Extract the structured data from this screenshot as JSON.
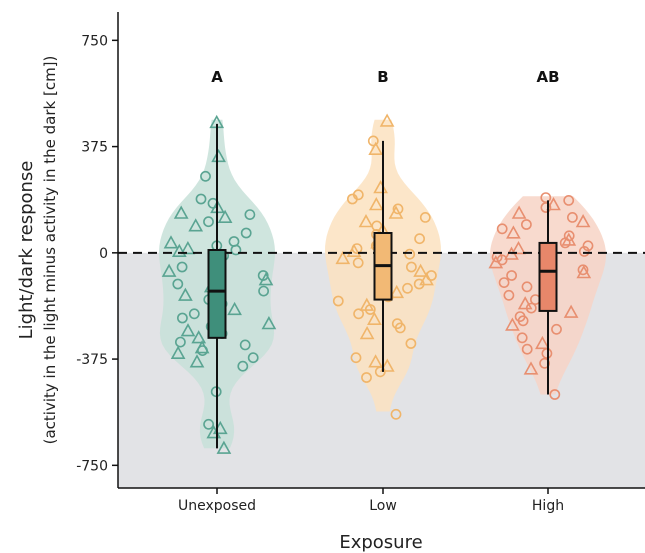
{
  "chart_data": {
    "type": "violin",
    "xlabel": "Exposure",
    "ylabel_line1": "Light/dark response",
    "ylabel_line2": "(activity in the light minus activity in the dark [cm])",
    "ylim": [
      -830,
      850
    ],
    "yticks": [
      750,
      375,
      0,
      -375,
      -750
    ],
    "ytick_labels": [
      "750",
      "375",
      "0",
      "-375",
      "-750"
    ],
    "reference_line": 0,
    "shaded_region": {
      "from": -830,
      "to": 0,
      "color": "#e2e3e6"
    },
    "groups": [
      {
        "name": "Unexposed",
        "sig_label": "A",
        "color": "#5aa492",
        "fill": "#c7e0d8",
        "box_fill": "#3f8f7b",
        "violin_range": [
          -690,
          470
        ],
        "box": {
          "whisker_low": -690,
          "q1": -300,
          "median": -135,
          "q3": 10,
          "whisker_high": 455
        },
        "points": [
          {
            "y": 460,
            "s": "triangle"
          },
          {
            "y": 340,
            "s": "triangle"
          },
          {
            "y": 270,
            "s": "circle"
          },
          {
            "y": 190,
            "s": "circle"
          },
          {
            "y": 175,
            "s": "circle"
          },
          {
            "y": 160,
            "s": "triangle"
          },
          {
            "y": 140,
            "s": "triangle"
          },
          {
            "y": 135,
            "s": "circle"
          },
          {
            "y": 125,
            "s": "triangle"
          },
          {
            "y": 110,
            "s": "circle"
          },
          {
            "y": 95,
            "s": "triangle"
          },
          {
            "y": 70,
            "s": "circle"
          },
          {
            "y": 40,
            "s": "circle"
          },
          {
            "y": 35,
            "s": "triangle"
          },
          {
            "y": 25,
            "s": "circle"
          },
          {
            "y": 15,
            "s": "triangle"
          },
          {
            "y": 10,
            "s": "circle"
          },
          {
            "y": 5,
            "s": "triangle"
          },
          {
            "y": -10,
            "s": "circle"
          },
          {
            "y": -30,
            "s": "triangle"
          },
          {
            "y": -50,
            "s": "circle"
          },
          {
            "y": -65,
            "s": "triangle"
          },
          {
            "y": -80,
            "s": "circle"
          },
          {
            "y": -95,
            "s": "triangle"
          },
          {
            "y": -110,
            "s": "circle"
          },
          {
            "y": -120,
            "s": "triangle"
          },
          {
            "y": -135,
            "s": "circle"
          },
          {
            "y": -150,
            "s": "triangle"
          },
          {
            "y": -165,
            "s": "circle"
          },
          {
            "y": -180,
            "s": "circle"
          },
          {
            "y": -200,
            "s": "triangle"
          },
          {
            "y": -215,
            "s": "circle"
          },
          {
            "y": -230,
            "s": "circle"
          },
          {
            "y": -250,
            "s": "triangle"
          },
          {
            "y": -260,
            "s": "circle"
          },
          {
            "y": -275,
            "s": "triangle"
          },
          {
            "y": -285,
            "s": "circle"
          },
          {
            "y": -300,
            "s": "triangle"
          },
          {
            "y": -315,
            "s": "circle"
          },
          {
            "y": -325,
            "s": "circle"
          },
          {
            "y": -335,
            "s": "triangle"
          },
          {
            "y": -345,
            "s": "circle"
          },
          {
            "y": -355,
            "s": "triangle"
          },
          {
            "y": -370,
            "s": "circle"
          },
          {
            "y": -385,
            "s": "triangle"
          },
          {
            "y": -400,
            "s": "circle"
          },
          {
            "y": -490,
            "s": "circle"
          },
          {
            "y": -605,
            "s": "circle"
          },
          {
            "y": -620,
            "s": "triangle"
          },
          {
            "y": -635,
            "s": "triangle"
          },
          {
            "y": -690,
            "s": "triangle"
          }
        ]
      },
      {
        "name": "Low",
        "sig_label": "B",
        "color": "#f0b56a",
        "fill": "#fbe2c0",
        "box_fill": "#f2b975",
        "violin_range": [
          -560,
          470
        ],
        "box": {
          "whisker_low": -420,
          "q1": -165,
          "median": -45,
          "q3": 70,
          "whisker_high": 395
        },
        "points": [
          {
            "y": 465,
            "s": "triangle"
          },
          {
            "y": 395,
            "s": "circle"
          },
          {
            "y": 365,
            "s": "triangle"
          },
          {
            "y": 230,
            "s": "triangle"
          },
          {
            "y": 205,
            "s": "circle"
          },
          {
            "y": 190,
            "s": "circle"
          },
          {
            "y": 170,
            "s": "triangle"
          },
          {
            "y": 155,
            "s": "circle"
          },
          {
            "y": 140,
            "s": "triangle"
          },
          {
            "y": 125,
            "s": "circle"
          },
          {
            "y": 110,
            "s": "triangle"
          },
          {
            "y": 95,
            "s": "circle"
          },
          {
            "y": 80,
            "s": "triangle"
          },
          {
            "y": 65,
            "s": "circle"
          },
          {
            "y": 50,
            "s": "circle"
          },
          {
            "y": 35,
            "s": "triangle"
          },
          {
            "y": 25,
            "s": "circle"
          },
          {
            "y": 15,
            "s": "circle"
          },
          {
            "y": 5,
            "s": "triangle"
          },
          {
            "y": -5,
            "s": "circle"
          },
          {
            "y": -20,
            "s": "triangle"
          },
          {
            "y": -35,
            "s": "circle"
          },
          {
            "y": -50,
            "s": "circle"
          },
          {
            "y": -65,
            "s": "triangle"
          },
          {
            "y": -80,
            "s": "circle"
          },
          {
            "y": -95,
            "s": "triangle"
          },
          {
            "y": -110,
            "s": "circle"
          },
          {
            "y": -125,
            "s": "circle"
          },
          {
            "y": -140,
            "s": "triangle"
          },
          {
            "y": -155,
            "s": "circle"
          },
          {
            "y": -170,
            "s": "circle"
          },
          {
            "y": -185,
            "s": "triangle"
          },
          {
            "y": -200,
            "s": "circle"
          },
          {
            "y": -215,
            "s": "circle"
          },
          {
            "y": -235,
            "s": "triangle"
          },
          {
            "y": -250,
            "s": "circle"
          },
          {
            "y": -265,
            "s": "circle"
          },
          {
            "y": -285,
            "s": "triangle"
          },
          {
            "y": -320,
            "s": "circle"
          },
          {
            "y": -370,
            "s": "circle"
          },
          {
            "y": -385,
            "s": "triangle"
          },
          {
            "y": -400,
            "s": "triangle"
          },
          {
            "y": -420,
            "s": "circle"
          },
          {
            "y": -440,
            "s": "circle"
          },
          {
            "y": -570,
            "s": "circle"
          }
        ]
      },
      {
        "name": "High",
        "sig_label": "AB",
        "color": "#e88f70",
        "fill": "#f7d3c5",
        "box_fill": "#e8876a",
        "violin_range": [
          -500,
          200
        ],
        "box": {
          "whisker_low": -500,
          "q1": -205,
          "median": -65,
          "q3": 35,
          "whisker_high": 185
        },
        "points": [
          {
            "y": 195,
            "s": "circle"
          },
          {
            "y": 185,
            "s": "circle"
          },
          {
            "y": 170,
            "s": "triangle"
          },
          {
            "y": 160,
            "s": "circle"
          },
          {
            "y": 140,
            "s": "triangle"
          },
          {
            "y": 125,
            "s": "circle"
          },
          {
            "y": 110,
            "s": "triangle"
          },
          {
            "y": 100,
            "s": "circle"
          },
          {
            "y": 85,
            "s": "circle"
          },
          {
            "y": 70,
            "s": "triangle"
          },
          {
            "y": 60,
            "s": "circle"
          },
          {
            "y": 45,
            "s": "triangle"
          },
          {
            "y": 35,
            "s": "circle"
          },
          {
            "y": 25,
            "s": "circle"
          },
          {
            "y": 15,
            "s": "triangle"
          },
          {
            "y": 5,
            "s": "circle"
          },
          {
            "y": -5,
            "s": "triangle"
          },
          {
            "y": -15,
            "s": "circle"
          },
          {
            "y": -25,
            "s": "circle"
          },
          {
            "y": -35,
            "s": "triangle"
          },
          {
            "y": -45,
            "s": "circle"
          },
          {
            "y": -60,
            "s": "circle"
          },
          {
            "y": -70,
            "s": "triangle"
          },
          {
            "y": -80,
            "s": "circle"
          },
          {
            "y": -95,
            "s": "triangle"
          },
          {
            "y": -105,
            "s": "circle"
          },
          {
            "y": -120,
            "s": "circle"
          },
          {
            "y": -135,
            "s": "triangle"
          },
          {
            "y": -150,
            "s": "circle"
          },
          {
            "y": -165,
            "s": "circle"
          },
          {
            "y": -180,
            "s": "triangle"
          },
          {
            "y": -195,
            "s": "circle"
          },
          {
            "y": -210,
            "s": "triangle"
          },
          {
            "y": -225,
            "s": "circle"
          },
          {
            "y": -240,
            "s": "circle"
          },
          {
            "y": -255,
            "s": "triangle"
          },
          {
            "y": -270,
            "s": "circle"
          },
          {
            "y": -300,
            "s": "circle"
          },
          {
            "y": -320,
            "s": "triangle"
          },
          {
            "y": -340,
            "s": "circle"
          },
          {
            "y": -355,
            "s": "circle"
          },
          {
            "y": -390,
            "s": "circle"
          },
          {
            "y": -410,
            "s": "triangle"
          },
          {
            "y": -500,
            "s": "circle"
          }
        ]
      }
    ]
  }
}
